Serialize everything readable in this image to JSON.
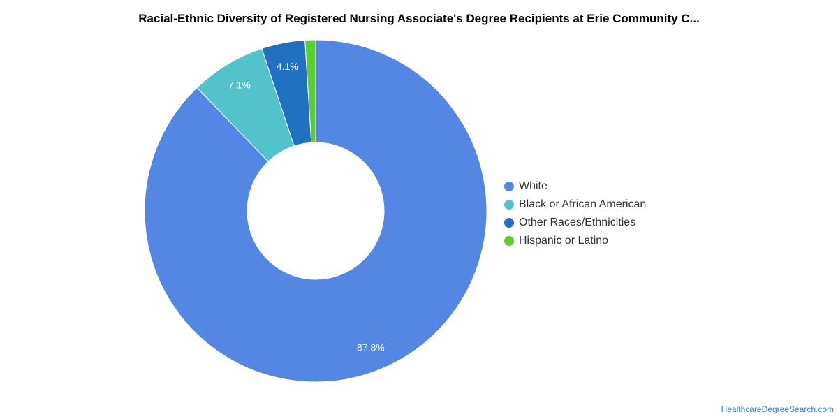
{
  "chart_data": {
    "type": "pie",
    "title": "Racial-Ethnic Diversity of Registered Nursing Associate's Degree Recipients at Erie Community C...",
    "categories": [
      "White",
      "Black or African American",
      "Other Races/Ethnicities",
      "Hispanic or Latino"
    ],
    "values": [
      87.8,
      7.1,
      4.1,
      1.0
    ],
    "labels": [
      "87.8%",
      "7.1%",
      "4.1%",
      ""
    ],
    "colors": [
      "#5486e3",
      "#52c2cd",
      "#2170c1",
      "#58cf2a"
    ],
    "donut": true,
    "legend": "right"
  },
  "footer": {
    "source": "HealthcareDegreeSearch.com"
  }
}
